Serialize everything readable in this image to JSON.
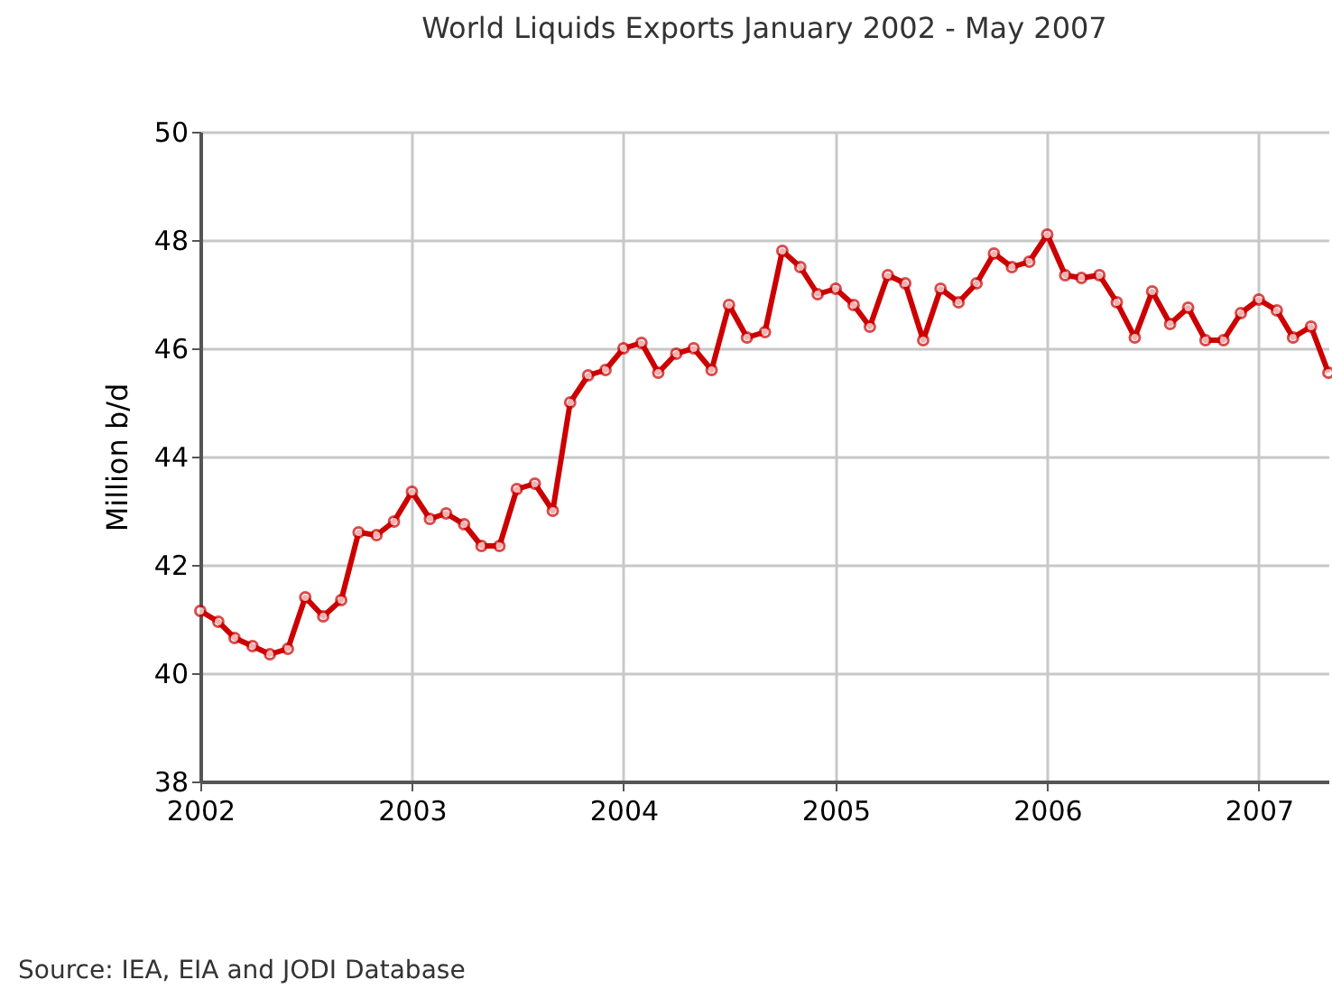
{
  "chart_data": {
    "type": "line",
    "title": "World Liquids Exports January 2002 - May 2007",
    "ylabel": "Million b/d",
    "x": [
      "2002-01",
      "2002-02",
      "2002-03",
      "2002-04",
      "2002-05",
      "2002-06",
      "2002-07",
      "2002-08",
      "2002-09",
      "2002-10",
      "2002-11",
      "2002-12",
      "2003-01",
      "2003-02",
      "2003-03",
      "2003-04",
      "2003-05",
      "2003-06",
      "2003-07",
      "2003-08",
      "2003-09",
      "2003-10",
      "2003-11",
      "2003-12",
      "2004-01",
      "2004-02",
      "2004-03",
      "2004-04",
      "2004-05",
      "2004-06",
      "2004-07",
      "2004-08",
      "2004-09",
      "2004-10",
      "2004-11",
      "2004-12",
      "2005-01",
      "2005-02",
      "2005-03",
      "2005-04",
      "2005-05",
      "2005-06",
      "2005-07",
      "2005-08",
      "2005-09",
      "2005-10",
      "2005-11",
      "2005-12",
      "2006-01",
      "2006-02",
      "2006-03",
      "2006-04",
      "2006-05",
      "2006-06",
      "2006-07",
      "2006-08",
      "2006-09",
      "2006-10",
      "2006-11",
      "2006-12",
      "2007-01",
      "2007-02",
      "2007-03",
      "2007-04",
      "2007-05"
    ],
    "series": [
      {
        "color": "#cc0000",
        "values": [
          41.15,
          40.95,
          40.65,
          40.5,
          40.35,
          40.45,
          41.4,
          41.05,
          41.35,
          42.6,
          42.55,
          42.8,
          43.35,
          42.85,
          42.95,
          42.75,
          42.35,
          42.35,
          43.4,
          43.5,
          43.0,
          45.0,
          45.5,
          45.6,
          46.0,
          46.1,
          45.55,
          45.9,
          46.0,
          45.6,
          46.8,
          46.2,
          46.3,
          47.8,
          47.5,
          47.0,
          47.1,
          46.8,
          46.4,
          47.35,
          47.2,
          46.15,
          47.1,
          46.85,
          47.2,
          47.75,
          47.5,
          47.6,
          48.1,
          47.35,
          47.3,
          47.35,
          46.85,
          46.2,
          47.05,
          46.45,
          46.75,
          46.15,
          46.15,
          46.65,
          46.9,
          46.7,
          46.2,
          46.4,
          45.55
        ]
      }
    ],
    "xlim": [
      "2002-01",
      "2007-05"
    ],
    "xticks": [
      {
        "value": "2002",
        "label": "2002"
      },
      {
        "value": "2003",
        "label": "2003"
      },
      {
        "value": "2004",
        "label": "2004"
      },
      {
        "value": "2005",
        "label": "2005"
      },
      {
        "value": "2006",
        "label": "2006"
      },
      {
        "value": "2007",
        "label": "2007"
      }
    ],
    "ylim": [
      38,
      50
    ],
    "yticks": [
      38,
      40,
      42,
      44,
      46,
      48,
      50
    ],
    "grid": true,
    "marker": "circle",
    "line_style": "solid",
    "annotations": [
      "Source:  IEA, EIA and JODI Database"
    ]
  }
}
